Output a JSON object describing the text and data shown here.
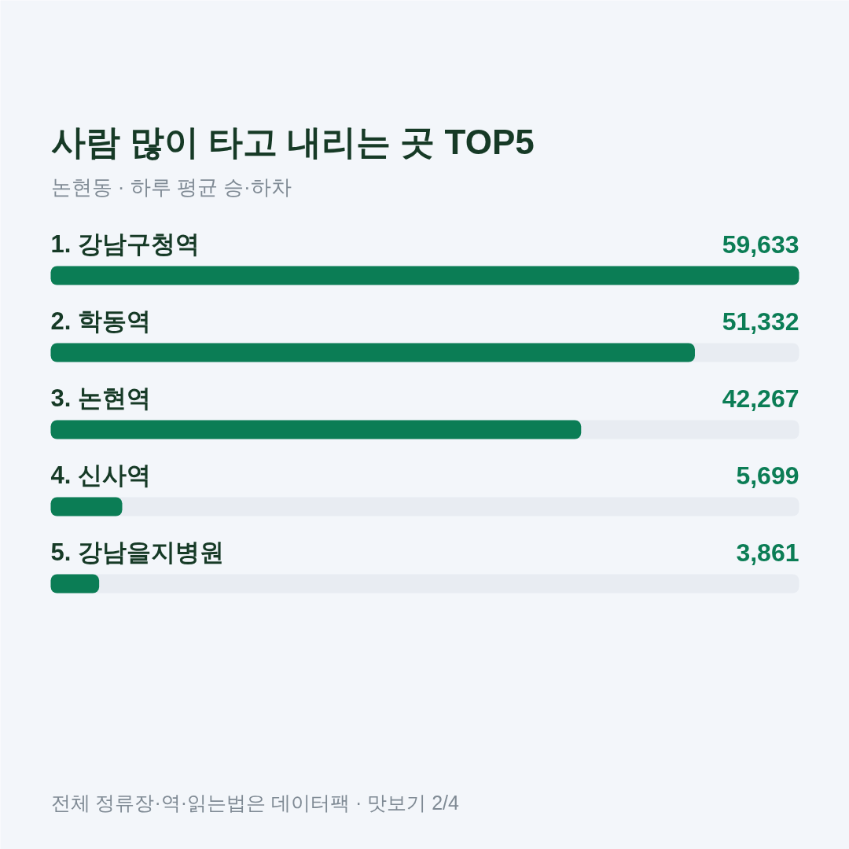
{
  "chart_data": {
    "type": "bar",
    "orientation": "horizontal",
    "title": "사람 많이 타고 내리는 곳 TOP5",
    "subtitle": "논현동 · 하루 평균 승·하차",
    "categories": [
      "1. 강남구청역",
      "2. 학동역",
      "3. 논현역",
      "4. 신사역",
      "5. 강남을지병원"
    ],
    "values": [
      59633,
      51332,
      42267,
      5699,
      3861
    ],
    "value_labels": [
      "59,633",
      "51,332",
      "42,267",
      "5,699",
      "3,861"
    ],
    "color": "#0b7d55",
    "annotations": [
      "전체 정류장·역·읽는법은 데이터팩 · 맛보기 2/4"
    ]
  }
}
